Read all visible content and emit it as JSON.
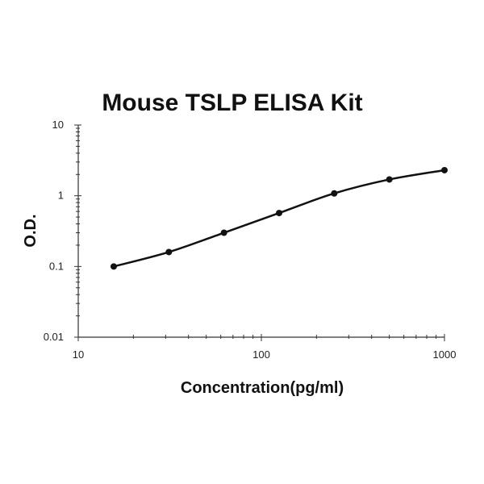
{
  "chart_data": {
    "type": "scatter",
    "title": "Mouse TSLP ELISA Kit",
    "xlabel": "Concentration(pg/ml)",
    "ylabel": "O.D.",
    "xscale": "log",
    "yscale": "log",
    "xlim": [
      10,
      1000
    ],
    "ylim": [
      0.01,
      10
    ],
    "x_ticks": [
      10,
      100,
      1000
    ],
    "x_tick_labels": [
      "10",
      "100",
      "1000"
    ],
    "y_ticks": [
      0.01,
      0.1,
      1,
      10
    ],
    "y_tick_labels": [
      "0.01",
      "0.1",
      "1",
      "10"
    ],
    "grid": false,
    "legend": "none",
    "fit": "smooth curve through points",
    "series": [
      {
        "x": [
          15.625,
          31.25,
          62.5,
          125,
          250,
          500,
          1000
        ],
        "y": [
          0.1,
          0.16,
          0.3,
          0.57,
          1.08,
          1.7,
          2.3
        ]
      }
    ],
    "colors": {
      "points": "#111111",
      "curve": "#111111",
      "axes": "#333333"
    }
  }
}
